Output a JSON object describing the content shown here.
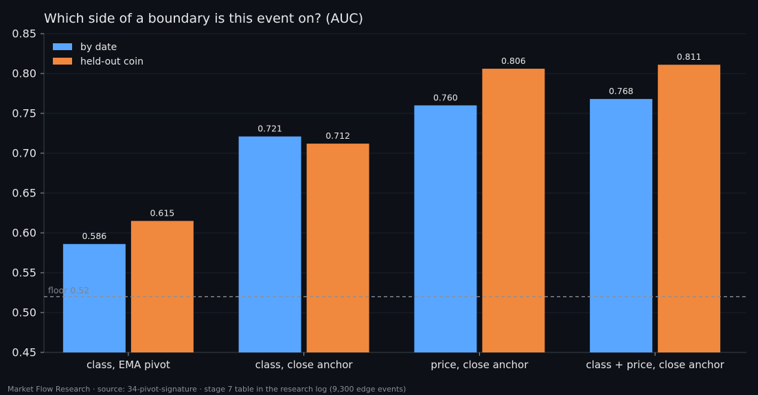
{
  "chart_data": {
    "type": "bar",
    "title": "Which side of a boundary is this event on? (AUC)",
    "categories": [
      "class, EMA pivot",
      "class, close anchor",
      "price, close anchor",
      "class + price, close anchor"
    ],
    "series": [
      {
        "name": "by date",
        "values": [
          0.586,
          0.721,
          0.76,
          0.768
        ],
        "color": "#58a6ff"
      },
      {
        "name": "held-out coin",
        "values": [
          0.615,
          0.712,
          0.806,
          0.811
        ],
        "color": "#f0883e"
      }
    ],
    "value_labels": [
      [
        "0.586",
        "0.721",
        "0.760",
        "0.768"
      ],
      [
        "0.615",
        "0.712",
        "0.806",
        "0.811"
      ]
    ],
    "ylim": [
      0.45,
      0.85
    ],
    "yticks": [
      0.45,
      0.5,
      0.55,
      0.6,
      0.65,
      0.7,
      0.75,
      0.8,
      0.85
    ],
    "ytick_labels": [
      "0.45",
      "0.50",
      "0.55",
      "0.60",
      "0.65",
      "0.70",
      "0.75",
      "0.80",
      "0.85"
    ],
    "reference_line": {
      "value": 0.52,
      "label": "floor 0.52",
      "color": "#8b8f97",
      "style": "dashed"
    },
    "legend": "top-left",
    "grid": "horizontal, faint",
    "background": "#0d1017",
    "footer": "Market Flow Research · source: 34-pivot-signature · stage 7 table in the research log (9,300 edge events)"
  }
}
